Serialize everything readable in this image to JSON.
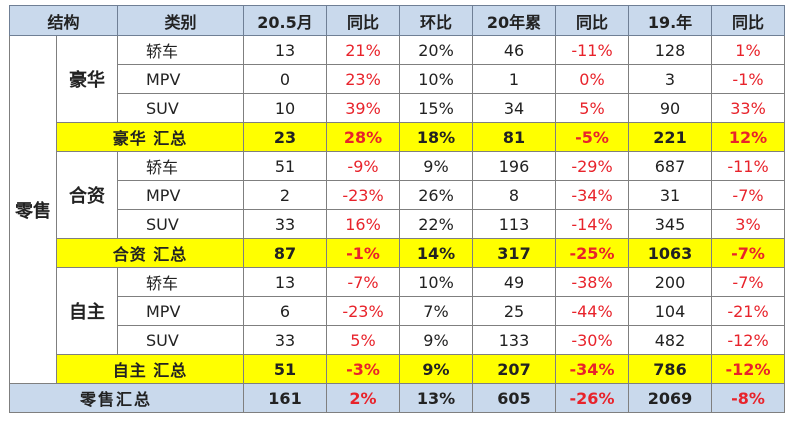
{
  "headers": [
    "结构",
    "类别",
    "20.5月",
    "同比",
    "环比",
    "20年累",
    "同比",
    "19.年",
    "同比"
  ],
  "retail_label": "零售",
  "groups": [
    {
      "name": "豪华",
      "rows": [
        {
          "cat": "轿车",
          "may": "13",
          "yoy": "21%",
          "mom": "20%",
          "ytd": "46",
          "ytd_yoy": "-11%",
          "y19": "128",
          "y19_yoy": "1%"
        },
        {
          "cat": "MPV",
          "may": "0",
          "yoy": "23%",
          "mom": "10%",
          "ytd": "1",
          "ytd_yoy": "0%",
          "y19": "3",
          "y19_yoy": "-1%"
        },
        {
          "cat": "SUV",
          "may": "10",
          "yoy": "39%",
          "mom": "15%",
          "ytd": "34",
          "ytd_yoy": "5%",
          "y19": "90",
          "y19_yoy": "33%"
        }
      ],
      "summary": {
        "label": "豪华 汇总",
        "may": "23",
        "yoy": "28%",
        "mom": "18%",
        "ytd": "81",
        "ytd_yoy": "-5%",
        "y19": "221",
        "y19_yoy": "12%"
      }
    },
    {
      "name": "合资",
      "rows": [
        {
          "cat": "轿车",
          "may": "51",
          "yoy": "-9%",
          "mom": "9%",
          "ytd": "196",
          "ytd_yoy": "-29%",
          "y19": "687",
          "y19_yoy": "-11%"
        },
        {
          "cat": "MPV",
          "may": "2",
          "yoy": "-23%",
          "mom": "26%",
          "ytd": "8",
          "ytd_yoy": "-34%",
          "y19": "31",
          "y19_yoy": "-7%"
        },
        {
          "cat": "SUV",
          "may": "33",
          "yoy": "16%",
          "mom": "22%",
          "ytd": "113",
          "ytd_yoy": "-14%",
          "y19": "345",
          "y19_yoy": "3%"
        }
      ],
      "summary": {
        "label": "合资 汇总",
        "may": "87",
        "yoy": "-1%",
        "mom": "14%",
        "ytd": "317",
        "ytd_yoy": "-25%",
        "y19": "1063",
        "y19_yoy": "-7%"
      }
    },
    {
      "name": "自主",
      "rows": [
        {
          "cat": "轿车",
          "may": "13",
          "yoy": "-7%",
          "mom": "10%",
          "ytd": "49",
          "ytd_yoy": "-38%",
          "y19": "200",
          "y19_yoy": "-7%"
        },
        {
          "cat": "MPV",
          "may": "6",
          "yoy": "-23%",
          "mom": "7%",
          "ytd": "25",
          "ytd_yoy": "-44%",
          "y19": "104",
          "y19_yoy": "-21%"
        },
        {
          "cat": "SUV",
          "may": "33",
          "yoy": "5%",
          "mom": "9%",
          "ytd": "133",
          "ytd_yoy": "-30%",
          "y19": "482",
          "y19_yoy": "-12%"
        }
      ],
      "summary": {
        "label": "自主 汇总",
        "may": "51",
        "yoy": "-3%",
        "mom": "9%",
        "ytd": "207",
        "ytd_yoy": "-34%",
        "y19": "786",
        "y19_yoy": "-12%"
      }
    }
  ],
  "total": {
    "label": "零售汇总",
    "may": "161",
    "yoy": "2%",
    "mom": "13%",
    "ytd": "605",
    "ytd_yoy": "-26%",
    "y19": "2069",
    "y19_yoy": "-8%"
  },
  "colors": {
    "header_bg": "#c9d9ec",
    "summary_bg": "#ffff00",
    "pct_red": "#e8232b"
  }
}
